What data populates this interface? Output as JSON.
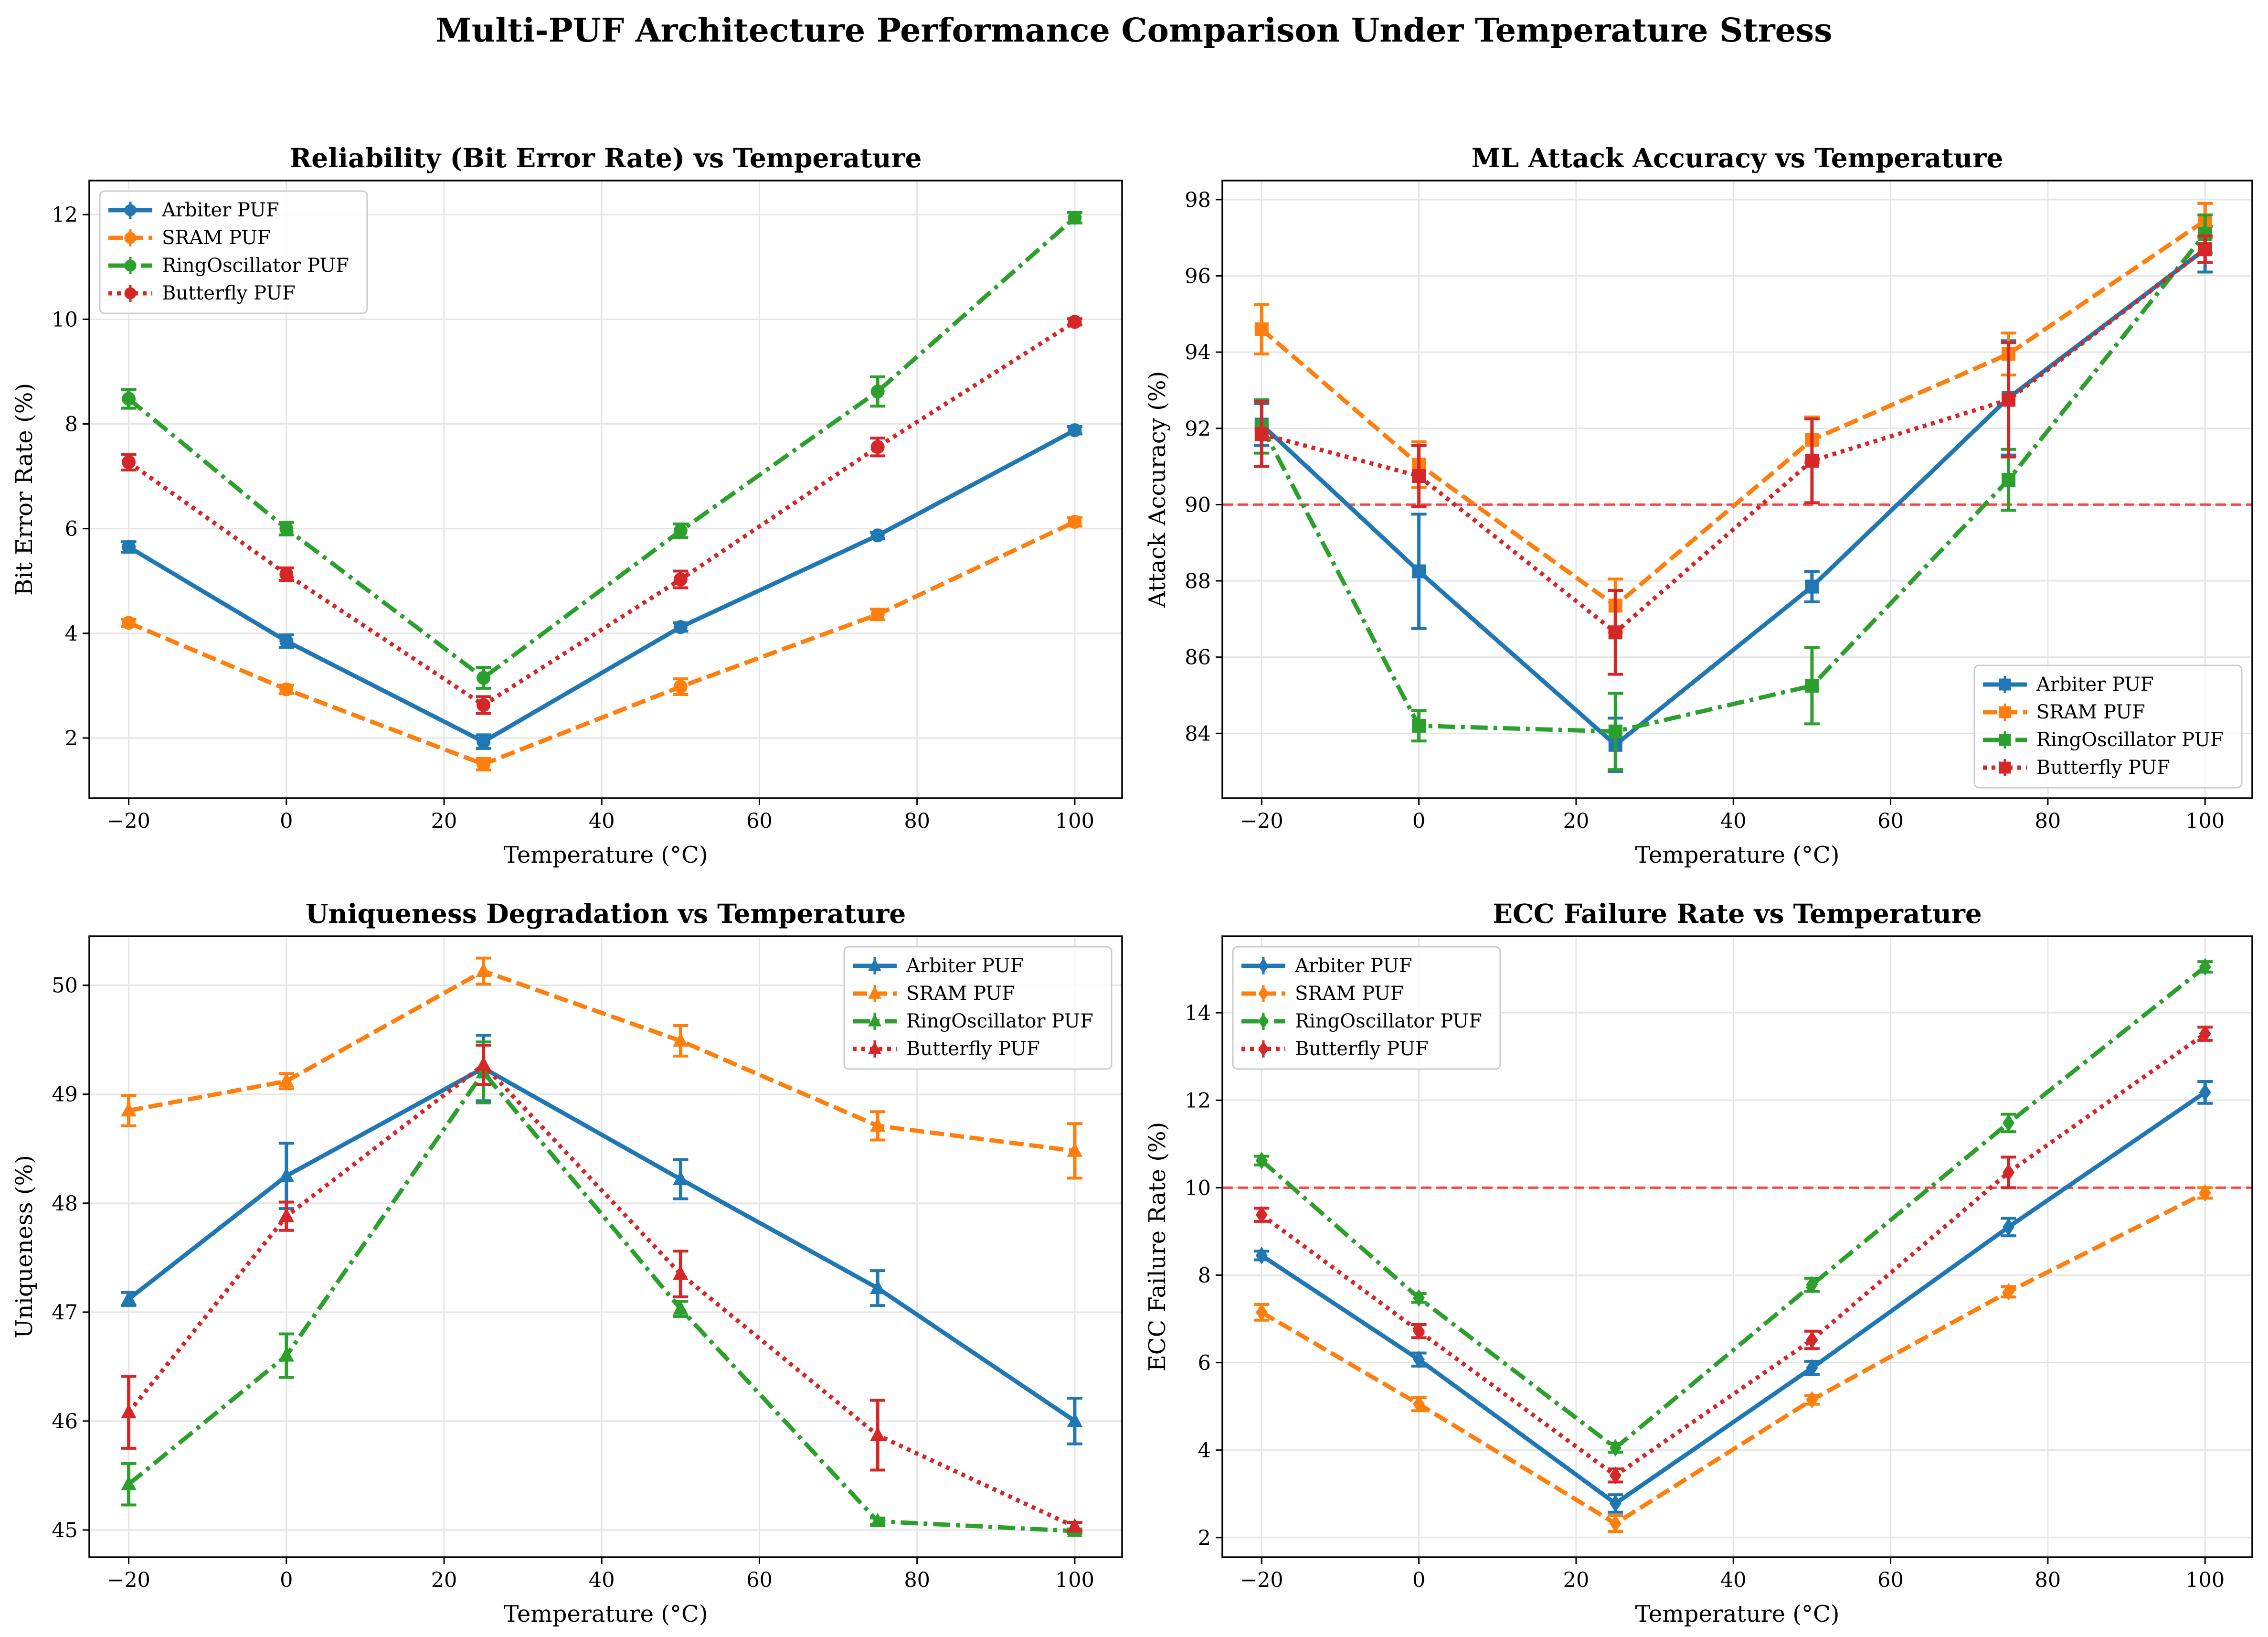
{
  "title": "Multi-PUF Architecture Performance Comparison Under Temperature Stress",
  "series_styles": [
    {
      "name": "Arbiter PUF",
      "color": "#1f77b4",
      "dash": "solid"
    },
    {
      "name": "SRAM PUF",
      "color": "#ff7f0e",
      "dash": "dashed"
    },
    {
      "name": "RingOscillator PUF",
      "color": "#2ca02c",
      "dash": "dashdot"
    },
    {
      "name": "Butterfly PUF",
      "color": "#d62728",
      "dash": "dotted"
    }
  ],
  "chart_data": [
    {
      "type": "line",
      "title": "Reliability (Bit Error Rate) vs Temperature",
      "xlabel": "Temperature (°C)",
      "ylabel": "Bit Error Rate (%)",
      "x": [
        -20,
        0,
        25,
        50,
        75,
        100
      ],
      "xlim": [
        -25,
        106
      ],
      "ylim": [
        0.85,
        12.65
      ],
      "xticks": [
        -20,
        0,
        20,
        40,
        60,
        80,
        100
      ],
      "yticks": [
        2,
        4,
        6,
        8,
        10,
        12
      ],
      "marker": "circle",
      "grid": true,
      "legend": "upper left",
      "series": [
        {
          "name": "Arbiter PUF",
          "values": [
            5.65,
            3.85,
            1.93,
            4.12,
            5.87,
            7.88
          ],
          "errors": [
            0.1,
            0.12,
            0.13,
            0.08,
            0.06,
            0.07
          ]
        },
        {
          "name": "SRAM PUF",
          "values": [
            4.2,
            2.93,
            1.5,
            2.98,
            4.36,
            6.13
          ],
          "errors": [
            0.07,
            0.08,
            0.11,
            0.15,
            0.1,
            0.08
          ]
        },
        {
          "name": "RingOscillator PUF",
          "values": [
            8.48,
            6.0,
            3.15,
            5.96,
            8.62,
            11.94
          ],
          "errors": [
            0.18,
            0.12,
            0.2,
            0.13,
            0.28,
            0.1
          ]
        },
        {
          "name": "Butterfly PUF",
          "values": [
            7.27,
            5.13,
            2.63,
            5.03,
            7.56,
            9.95
          ],
          "errors": [
            0.15,
            0.12,
            0.16,
            0.16,
            0.17,
            0.06
          ]
        }
      ]
    },
    {
      "type": "line",
      "title": "ML Attack Accuracy vs Temperature",
      "xlabel": "Temperature (°C)",
      "ylabel": "Attack Accuracy (%)",
      "x": [
        -20,
        0,
        25,
        50,
        75,
        100
      ],
      "xlim": [
        -25,
        106
      ],
      "ylim": [
        82.3,
        98.5
      ],
      "xticks": [
        -20,
        0,
        20,
        40,
        60,
        80,
        100
      ],
      "yticks": [
        84,
        86,
        88,
        90,
        92,
        94,
        96,
        98
      ],
      "marker": "square",
      "grid": true,
      "legend": "lower right",
      "threshold": 90,
      "series": [
        {
          "name": "Arbiter PUF",
          "values": [
            92.1,
            88.25,
            83.7,
            87.85,
            92.8,
            96.7
          ],
          "errors": [
            0.55,
            1.5,
            0.7,
            0.4,
            1.5,
            0.6
          ]
        },
        {
          "name": "SRAM PUF",
          "values": [
            94.6,
            91.05,
            87.35,
            91.7,
            93.95,
            97.45
          ],
          "errors": [
            0.65,
            0.6,
            0.7,
            0.6,
            0.55,
            0.45
          ]
        },
        {
          "name": "RingOscillator PUF",
          "values": [
            92.05,
            84.2,
            84.05,
            85.25,
            90.65,
            97.1
          ],
          "errors": [
            0.7,
            0.4,
            1.0,
            1.0,
            0.8,
            0.5
          ]
        },
        {
          "name": "Butterfly PUF",
          "values": [
            91.85,
            90.75,
            86.65,
            91.15,
            92.75,
            96.7
          ],
          "errors": [
            0.85,
            0.8,
            1.1,
            1.1,
            1.5,
            0.35
          ]
        }
      ]
    },
    {
      "type": "line",
      "title": "Uniqueness Degradation vs Temperature",
      "xlabel": "Temperature (°C)",
      "ylabel": "Uniqueness (%)",
      "x": [
        -20,
        0,
        25,
        50,
        75,
        100
      ],
      "xlim": [
        -25,
        106
      ],
      "ylim": [
        44.75,
        50.45
      ],
      "xticks": [
        -20,
        0,
        20,
        40,
        60,
        80,
        100
      ],
      "yticks": [
        45,
        46,
        47,
        48,
        49,
        50
      ],
      "marker": "triangle",
      "grid": true,
      "legend": "upper right",
      "series": [
        {
          "name": "Arbiter PUF",
          "values": [
            47.12,
            48.25,
            49.24,
            48.22,
            47.22,
            46.0
          ],
          "errors": [
            0.06,
            0.3,
            0.3,
            0.18,
            0.16,
            0.21
          ]
        },
        {
          "name": "SRAM PUF",
          "values": [
            48.85,
            49.12,
            50.13,
            49.49,
            48.71,
            48.48
          ],
          "errors": [
            0.14,
            0.07,
            0.12,
            0.14,
            0.13,
            0.25
          ]
        },
        {
          "name": "RingOscillator PUF",
          "values": [
            45.42,
            46.6,
            49.2,
            47.03,
            45.08,
            44.99
          ],
          "errors": [
            0.19,
            0.2,
            0.28,
            0.07,
            0.03,
            0.02
          ]
        },
        {
          "name": "Butterfly PUF",
          "values": [
            46.08,
            47.88,
            49.27,
            47.35,
            45.87,
            45.03
          ],
          "errors": [
            0.33,
            0.13,
            0.18,
            0.21,
            0.32,
            0.04
          ]
        }
      ]
    },
    {
      "type": "line",
      "title": "ECC Failure Rate vs Temperature",
      "xlabel": "Temperature (°C)",
      "ylabel": "ECC Failure Rate (%)",
      "x": [
        -20,
        0,
        25,
        50,
        75,
        100
      ],
      "xlim": [
        -25,
        106
      ],
      "ylim": [
        1.55,
        15.75
      ],
      "xticks": [
        -20,
        0,
        20,
        40,
        60,
        80,
        100
      ],
      "yticks": [
        2,
        4,
        6,
        8,
        10,
        12,
        14
      ],
      "marker": "diamond",
      "grid": true,
      "legend": "upper left",
      "threshold": 10,
      "series": [
        {
          "name": "Arbiter PUF",
          "values": [
            8.45,
            6.07,
            2.78,
            5.88,
            9.1,
            12.18
          ],
          "errors": [
            0.1,
            0.15,
            0.2,
            0.15,
            0.2,
            0.25
          ]
        },
        {
          "name": "SRAM PUF",
          "values": [
            7.15,
            5.05,
            2.32,
            5.15,
            7.62,
            9.88
          ],
          "errors": [
            0.18,
            0.15,
            0.18,
            0.1,
            0.12,
            0.12
          ]
        },
        {
          "name": "RingOscillator PUF",
          "values": [
            10.62,
            7.48,
            4.05,
            7.78,
            11.48,
            15.05
          ],
          "errors": [
            0.1,
            0.1,
            0.1,
            0.15,
            0.2,
            0.12
          ]
        },
        {
          "name": "Butterfly PUF",
          "values": [
            9.38,
            6.72,
            3.42,
            6.52,
            10.35,
            13.52
          ],
          "errors": [
            0.15,
            0.15,
            0.15,
            0.2,
            0.35,
            0.15
          ]
        }
      ]
    }
  ]
}
